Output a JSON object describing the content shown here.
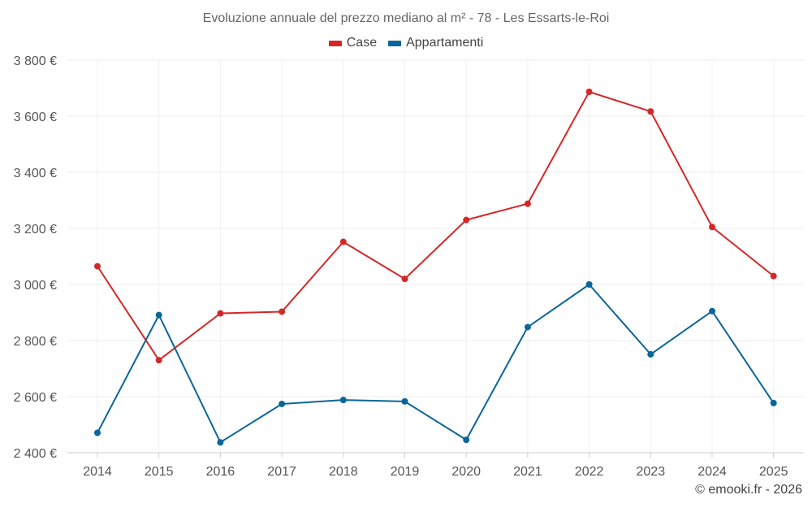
{
  "chart_data": {
    "type": "line",
    "title": "Evoluzione annuale del prezzo mediano al m² - 78 - Les Essarts-le-Roi",
    "categories": [
      "2014",
      "2015",
      "2016",
      "2017",
      "2018",
      "2019",
      "2020",
      "2021",
      "2022",
      "2023",
      "2024",
      "2025"
    ],
    "series": [
      {
        "name": "Case",
        "color": "#d62728",
        "values": [
          3065,
          2730,
          2897,
          2903,
          3152,
          3020,
          3230,
          3288,
          3687,
          3617,
          3205,
          3030
        ]
      },
      {
        "name": "Appartamenti",
        "color": "#0b6699",
        "values": [
          2471,
          2891,
          2437,
          2574,
          2588,
          2583,
          2446,
          2848,
          3000,
          2751,
          2905,
          2577
        ]
      }
    ],
    "ylim": [
      2400,
      3800
    ],
    "yticks": [
      2400,
      2600,
      2800,
      3000,
      3200,
      3400,
      3600,
      3800
    ],
    "ytick_labels": [
      "2 400 €",
      "2 600 €",
      "2 800 €",
      "3 000 €",
      "3 200 €",
      "3 400 €",
      "3 600 €",
      "3 800 €"
    ],
    "legend_position": "top-center",
    "grid": true
  },
  "credit": "© emooki.fr - 2026"
}
